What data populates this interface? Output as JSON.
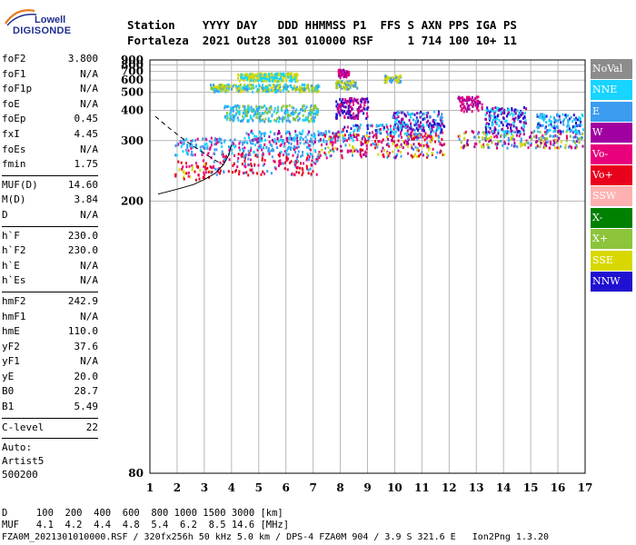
{
  "logo": {
    "line1": "Lowell",
    "line2": "DIGISONDE"
  },
  "header": {
    "line1": "Station    YYYY DAY   DDD HHMMSS P1  FFS S AXN PPS IGA PS",
    "line2": "Fortaleza  2021 Out28 301 010000 RSF     1 714 100 10+ 11"
  },
  "params_group1": [
    {
      "k": "foF2",
      "v": "3.800"
    },
    {
      "k": "foF1",
      "v": "N/A"
    },
    {
      "k": "foF1p",
      "v": "N/A"
    },
    {
      "k": "foE",
      "v": "N/A"
    },
    {
      "k": "foEp",
      "v": "0.45"
    },
    {
      "k": "fxI",
      "v": "4.45"
    },
    {
      "k": "foEs",
      "v": "N/A"
    },
    {
      "k": "fmin",
      "v": "1.75"
    }
  ],
  "params_group2": [
    {
      "k": "MUF(D)",
      "v": "14.60"
    },
    {
      "k": "M(D)",
      "v": "3.84"
    },
    {
      "k": "D",
      "v": "N/A"
    }
  ],
  "params_group3": [
    {
      "k": "h`F",
      "v": "230.0"
    },
    {
      "k": "h`F2",
      "v": "230.0"
    },
    {
      "k": "h`E",
      "v": "N/A"
    },
    {
      "k": "h`Es",
      "v": "N/A"
    }
  ],
  "params_group4": [
    {
      "k": "hmF2",
      "v": "242.9"
    },
    {
      "k": "hmF1",
      "v": "N/A"
    },
    {
      "k": "hmE",
      "v": "110.0"
    },
    {
      "k": "yF2",
      "v": "37.6"
    },
    {
      "k": "yF1",
      "v": "N/A"
    },
    {
      "k": "yE",
      "v": "20.0"
    },
    {
      "k": "B0",
      "v": "28.7"
    },
    {
      "k": "B1",
      "v": "5.49"
    }
  ],
  "clevel": {
    "k": "C-level",
    "v": "22"
  },
  "auto": {
    "line1": "Auto:",
    "line2": "Artist5",
    "line3": "500200"
  },
  "footer": {
    "line1": "D     100  200  400  600  800 1000 1500 3000 [km]",
    "line2": "MUF   4.1  4.2  4.4  4.8  5.4  6.2  8.5 14.6 [MHz]",
    "line3": "FZA0M_2021301010000.RSF / 320fx256h 50 kHz 5.0 km / DPS-4 FZA0M 904 / 3.9 S 321.6 E   Ion2Png 1.3.20"
  },
  "chart_data": {
    "type": "scatter",
    "x_ticks": [
      "1",
      "2",
      "3",
      "4",
      "5",
      "6",
      "7",
      "8",
      "9",
      "10",
      "11",
      "12",
      "13",
      "14",
      "15",
      "16",
      "17"
    ],
    "y_ticks": [
      "80",
      "200",
      "300",
      "400",
      "500",
      "600",
      "700",
      "800",
      "900"
    ],
    "xlim": [
      1,
      17
    ],
    "ylim": [
      80,
      900
    ],
    "y_scale": "reciprocal",
    "grid": true,
    "legend": [
      {
        "name": "NoVal",
        "color": "#8c8c8c"
      },
      {
        "name": "NNE",
        "color": "#18d4ff"
      },
      {
        "name": "E",
        "color": "#3c9cf0"
      },
      {
        "name": "W",
        "color": "#a000a0"
      },
      {
        "name": "Vo-",
        "color": "#e8007c"
      },
      {
        "name": "Vo+",
        "color": "#e8001c"
      },
      {
        "name": "SSW",
        "color": "#ffb0b0"
      },
      {
        "name": "X-",
        "color": "#008000"
      },
      {
        "name": "X+",
        "color": "#8cc43c"
      },
      {
        "name": "SSE",
        "color": "#d8d800"
      },
      {
        "name": "NNW",
        "color": "#2010d0"
      }
    ],
    "clusters": [
      {
        "x": [
          1.9,
          3.2
        ],
        "y": [
          225,
          260
        ],
        "colors": [
          "#e8001c",
          "#e8007c",
          "#e8001c",
          "#d8d800"
        ]
      },
      {
        "x": [
          3.2,
          7.2
        ],
        "y": [
          235,
          275
        ],
        "colors": [
          "#e8001c",
          "#e8007c",
          "#e8001c",
          "#3c9cf0"
        ]
      },
      {
        "x": [
          1.9,
          7.2
        ],
        "y": [
          270,
          310
        ],
        "colors": [
          "#3c9cf0",
          "#18d4ff",
          "#3c9cf0",
          "#e8007c"
        ]
      },
      {
        "x": [
          4.5,
          8.6
        ],
        "y": [
          300,
          330
        ],
        "colors": [
          "#18d4ff",
          "#3c9cf0",
          "#a000a0"
        ]
      },
      {
        "x": [
          7.2,
          11.8
        ],
        "y": [
          265,
          320
        ],
        "colors": [
          "#e8001c",
          "#e8007c",
          "#d8d800",
          "#3c9cf0",
          "#a000a0"
        ]
      },
      {
        "x": [
          8.0,
          11.8
        ],
        "y": [
          320,
          350
        ],
        "colors": [
          "#18d4ff",
          "#e8007c",
          "#3c9cf0",
          "#2010d0"
        ]
      },
      {
        "x": [
          9.9,
          11.8
        ],
        "y": [
          330,
          400
        ],
        "colors": [
          "#2010d0",
          "#18d4ff",
          "#3c9cf0",
          "#a000a0"
        ]
      },
      {
        "x": [
          12.3,
          16.9
        ],
        "y": [
          285,
          330
        ],
        "colors": [
          "#a000a0",
          "#e8007c",
          "#d8d800",
          "#8cc43c",
          "#3c9cf0"
        ]
      },
      {
        "x": [
          13.3,
          14.8
        ],
        "y": [
          320,
          420
        ],
        "colors": [
          "#2010d0",
          "#18d4ff",
          "#a000a0"
        ]
      },
      {
        "x": [
          15.2,
          16.9
        ],
        "y": [
          325,
          390
        ],
        "colors": [
          "#2010d0",
          "#3c9cf0",
          "#18d4ff"
        ]
      },
      {
        "x": [
          3.2,
          7.2
        ],
        "y": [
          510,
          570
        ],
        "colors": [
          "#d8d800",
          "#8cc43c",
          "#3c9cf0",
          "#18d4ff"
        ]
      },
      {
        "x": [
          7.8,
          8.6
        ],
        "y": [
          530,
          600
        ],
        "colors": [
          "#d8d800",
          "#8cc43c",
          "#3c9cf0"
        ]
      },
      {
        "x": [
          3.7,
          7.2
        ],
        "y": [
          360,
          430
        ],
        "colors": [
          "#18d4ff",
          "#3c9cf0",
          "#8cc43c"
        ]
      },
      {
        "x": [
          7.8,
          9.0
        ],
        "y": [
          370,
          470
        ],
        "colors": [
          "#a000a0",
          "#2010d0",
          "#e8007c"
        ]
      },
      {
        "x": [
          12.3,
          13.2
        ],
        "y": [
          400,
          480
        ],
        "colors": [
          "#e8007c",
          "#a000a0"
        ]
      },
      {
        "x": [
          4.2,
          6.4
        ],
        "y": [
          600,
          690
        ],
        "colors": [
          "#18d4ff",
          "#d8d800"
        ]
      },
      {
        "x": [
          7.9,
          8.3
        ],
        "y": [
          640,
          740
        ],
        "colors": [
          "#e8007c",
          "#a000a0"
        ]
      },
      {
        "x": [
          9.6,
          10.2
        ],
        "y": [
          590,
          660
        ],
        "colors": [
          "#3c9cf0",
          "#d8d800"
        ]
      }
    ],
    "curve_solid": [
      [
        1.3,
        208
      ],
      [
        2.0,
        214
      ],
      [
        2.6,
        220
      ],
      [
        3.0,
        227
      ],
      [
        3.4,
        236
      ],
      [
        3.7,
        250
      ],
      [
        3.9,
        268
      ],
      [
        4.0,
        290
      ]
    ],
    "curve_dashed": [
      [
        1.2,
        375
      ],
      [
        1.7,
        335
      ],
      [
        2.3,
        300
      ],
      [
        2.9,
        275
      ],
      [
        3.4,
        258
      ],
      [
        3.7,
        250
      ]
    ]
  }
}
